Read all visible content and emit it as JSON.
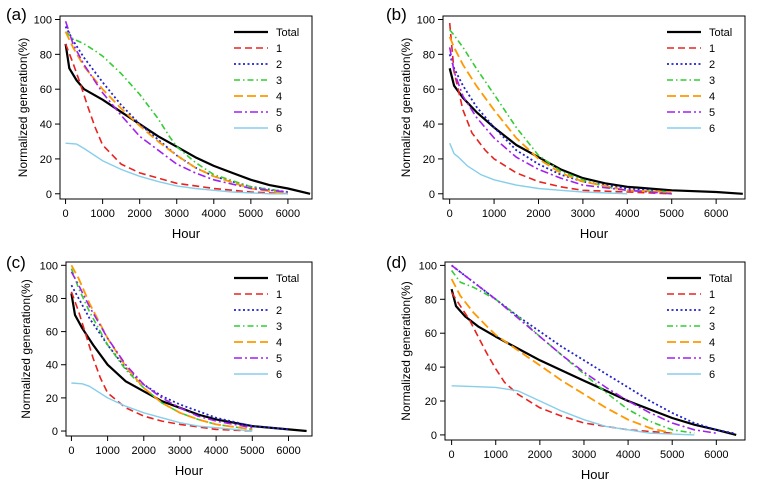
{
  "figure": {
    "colors": {
      "Total": "#000000",
      "1": "#e8231f",
      "2": "#2222cc",
      "3": "#33cc33",
      "4": "#ff9900",
      "5": "#a020f0",
      "6": "#87ceeb"
    }
  },
  "chart_data": [
    {
      "type": "line",
      "panel_label": "(a)",
      "xlabel": "Hour",
      "ylabel": "Normalized generation(%)",
      "xlim": [
        -150,
        6650
      ],
      "ylim": [
        -3,
        102
      ],
      "xticks": [
        0,
        1000,
        2000,
        3000,
        4000,
        5000,
        6000
      ],
      "yticks": [
        0,
        20,
        40,
        60,
        80,
        100
      ],
      "legend_position": "top-right",
      "series": [
        {
          "name": "Total",
          "x": [
            0,
            100,
            300,
            500,
            1000,
            1500,
            2000,
            2500,
            3000,
            3500,
            4000,
            4500,
            5000,
            5500,
            6000,
            6600
          ],
          "y": [
            86,
            72,
            65,
            60,
            54,
            47,
            40,
            33,
            27,
            21,
            16,
            12,
            8,
            5,
            3,
            0
          ]
        },
        {
          "name": "1",
          "x": [
            0,
            200,
            400,
            600,
            800,
            1000,
            1500,
            2000,
            2500,
            3000,
            4000,
            5000,
            6000
          ],
          "y": [
            86,
            75,
            63,
            50,
            38,
            28,
            17,
            12,
            9,
            6,
            3,
            1,
            0
          ]
        },
        {
          "name": "2",
          "x": [
            0,
            200,
            500,
            1000,
            1500,
            2000,
            2500,
            3000,
            3500,
            4000,
            5000,
            6000
          ],
          "y": [
            96,
            88,
            78,
            64,
            51,
            40,
            31,
            22,
            15,
            10,
            4,
            1
          ]
        },
        {
          "name": "3",
          "x": [
            0,
            200,
            500,
            800,
            1000,
            1500,
            2000,
            2500,
            2800,
            3000,
            3500,
            4000,
            5000,
            6000
          ],
          "y": [
            93,
            89,
            86,
            82,
            79,
            69,
            57,
            43,
            33,
            27,
            18,
            11,
            4,
            1
          ]
        },
        {
          "name": "4",
          "x": [
            0,
            200,
            500,
            1000,
            1500,
            2000,
            2500,
            3000,
            3500,
            4000,
            5000,
            6000
          ],
          "y": [
            93,
            84,
            73,
            60,
            49,
            39,
            30,
            22,
            15,
            10,
            3,
            0
          ]
        },
        {
          "name": "5",
          "x": [
            0,
            200,
            500,
            1000,
            1500,
            2000,
            2500,
            3000,
            3500,
            4000,
            5000,
            6000
          ],
          "y": [
            99,
            86,
            74,
            58,
            45,
            33,
            25,
            17,
            12,
            8,
            3,
            1
          ]
        },
        {
          "name": "6",
          "x": [
            0,
            300,
            500,
            1000,
            1500,
            2000,
            2500,
            3000,
            3500,
            4000,
            4500,
            5000,
            5500,
            6000
          ],
          "y": [
            29,
            28.5,
            26,
            19,
            14,
            10,
            7,
            4.5,
            3,
            2,
            1,
            0.5,
            0,
            0
          ]
        }
      ]
    },
    {
      "type": "line",
      "panel_label": "(b)",
      "xlabel": "Hour",
      "ylabel": "Normalized generation(%)",
      "xlim": [
        -150,
        6650
      ],
      "ylim": [
        -3,
        102
      ],
      "xticks": [
        0,
        1000,
        2000,
        3000,
        4000,
        5000,
        6000
      ],
      "yticks": [
        0,
        20,
        40,
        60,
        80,
        100
      ],
      "legend_position": "top-right",
      "series": [
        {
          "name": "Total",
          "x": [
            0,
            100,
            300,
            600,
            1000,
            1500,
            2000,
            2500,
            3000,
            3500,
            4000,
            5000,
            6000,
            6600
          ],
          "y": [
            72,
            62,
            55,
            47,
            38,
            28,
            21,
            14,
            9,
            6,
            4,
            2,
            1,
            0
          ]
        },
        {
          "name": "1",
          "x": [
            0,
            100,
            300,
            500,
            800,
            1000,
            1500,
            2000,
            2500,
            3000,
            4000,
            5000
          ],
          "y": [
            98,
            70,
            48,
            35,
            25,
            20,
            12,
            7,
            4,
            2,
            1,
            0
          ]
        },
        {
          "name": "2",
          "x": [
            0,
            100,
            300,
            600,
            1000,
            1500,
            2000,
            2500,
            3000,
            4000,
            5000
          ],
          "y": [
            80,
            72,
            62,
            50,
            38,
            25,
            17,
            11,
            7,
            3,
            1
          ]
        },
        {
          "name": "3",
          "x": [
            0,
            100,
            300,
            600,
            1000,
            1500,
            2000,
            2500,
            3000,
            3500,
            4000,
            5000
          ],
          "y": [
            94,
            91,
            84,
            72,
            57,
            38,
            22,
            13,
            8,
            4,
            2,
            1
          ]
        },
        {
          "name": "4",
          "x": [
            0,
            100,
            300,
            600,
            1000,
            1500,
            2000,
            2500,
            3000,
            4000,
            5000
          ],
          "y": [
            90,
            84,
            74,
            62,
            48,
            32,
            20,
            12,
            7,
            2,
            1
          ]
        },
        {
          "name": "5",
          "x": [
            0,
            100,
            300,
            600,
            1000,
            1500,
            2000,
            2500,
            3000,
            4000,
            5000
          ],
          "y": [
            84,
            70,
            56,
            44,
            32,
            21,
            14,
            9,
            5,
            2,
            0
          ]
        },
        {
          "name": "6",
          "x": [
            0,
            100,
            200,
            400,
            700,
            1000,
            1500,
            2000,
            2500,
            3000,
            4000
          ],
          "y": [
            29,
            23,
            21,
            16,
            11,
            8,
            5,
            3,
            2,
            1,
            0
          ]
        }
      ]
    },
    {
      "type": "line",
      "panel_label": "(c)",
      "xlabel": "Hour",
      "ylabel": "Normalized generation(%)",
      "xlim": [
        -150,
        6650
      ],
      "ylim": [
        -3,
        102
      ],
      "xticks": [
        0,
        1000,
        2000,
        3000,
        4000,
        5000,
        6000
      ],
      "yticks": [
        0,
        20,
        40,
        60,
        80,
        100
      ],
      "legend_position": "top-right",
      "series": [
        {
          "name": "Total",
          "x": [
            0,
            100,
            300,
            600,
            1000,
            1500,
            2000,
            2500,
            3000,
            3500,
            4000,
            5000,
            6000,
            6500
          ],
          "y": [
            83,
            70,
            62,
            52,
            40,
            30,
            24,
            18,
            14,
            10,
            7,
            3,
            1,
            0
          ]
        },
        {
          "name": "1",
          "x": [
            0,
            200,
            400,
            600,
            800,
            1000,
            1500,
            2000,
            2500,
            3000,
            4000,
            5000
          ],
          "y": [
            84,
            72,
            58,
            44,
            32,
            23,
            14,
            9,
            6,
            4,
            1,
            0
          ]
        },
        {
          "name": "2",
          "x": [
            0,
            200,
            500,
            1000,
            1500,
            2000,
            2500,
            3000,
            3500,
            4000,
            5000,
            6000
          ],
          "y": [
            88,
            80,
            68,
            52,
            38,
            28,
            21,
            16,
            12,
            8,
            3,
            1
          ]
        },
        {
          "name": "3",
          "x": [
            0,
            200,
            500,
            1000,
            1500,
            2000,
            2500,
            3000,
            3500,
            4000,
            5000
          ],
          "y": [
            98,
            86,
            72,
            52,
            37,
            26,
            17,
            11,
            7,
            4,
            1
          ]
        },
        {
          "name": "4",
          "x": [
            0,
            200,
            500,
            1000,
            1500,
            2000,
            2500,
            3000,
            3500,
            4000,
            5000
          ],
          "y": [
            100,
            92,
            77,
            56,
            39,
            26,
            17,
            11,
            7,
            4,
            1
          ]
        },
        {
          "name": "5",
          "x": [
            0,
            200,
            500,
            1000,
            1500,
            2000,
            2500,
            3000,
            3500,
            4000,
            5000
          ],
          "y": [
            96,
            88,
            75,
            56,
            40,
            28,
            20,
            14,
            9,
            6,
            2
          ]
        },
        {
          "name": "6",
          "x": [
            0,
            300,
            500,
            1000,
            1500,
            2000,
            2500,
            3000,
            3500,
            4000,
            5000
          ],
          "y": [
            29,
            28.5,
            27,
            20,
            15,
            11,
            8,
            5,
            3,
            2,
            0
          ]
        }
      ]
    },
    {
      "type": "line",
      "panel_label": "(d)",
      "xlabel": "Hour",
      "ylabel": "Normalized generation(%)",
      "xlim": [
        -150,
        6650
      ],
      "ylim": [
        -3,
        102
      ],
      "xticks": [
        0,
        1000,
        2000,
        3000,
        4000,
        5000,
        6000
      ],
      "yticks": [
        0,
        20,
        40,
        60,
        80,
        100
      ],
      "legend_position": "top-right",
      "series": [
        {
          "name": "Total",
          "x": [
            0,
            100,
            300,
            600,
            1000,
            1500,
            2000,
            2500,
            3000,
            3500,
            4000,
            4500,
            5000,
            5500,
            6000,
            6450
          ],
          "y": [
            86,
            76,
            70,
            64,
            58,
            51,
            44,
            38,
            32,
            26,
            20,
            15,
            10,
            6,
            3,
            0
          ]
        },
        {
          "name": "1",
          "x": [
            0,
            200,
            400,
            600,
            800,
            1000,
            1200,
            1500,
            2000,
            2500,
            3000,
            4000,
            5000
          ],
          "y": [
            84,
            76,
            68,
            58,
            48,
            39,
            31,
            24,
            16,
            11,
            7,
            3,
            1
          ]
        },
        {
          "name": "2",
          "x": [
            0,
            500,
            1000,
            1500,
            2000,
            2500,
            3000,
            3500,
            4000,
            4500,
            5000,
            5500,
            6000,
            6400
          ],
          "y": [
            100,
            90,
            80,
            70,
            61,
            52,
            44,
            36,
            28,
            20,
            13,
            7,
            3,
            1
          ]
        },
        {
          "name": "3",
          "x": [
            0,
            200,
            500,
            1000,
            1500,
            2000,
            2500,
            3000,
            3500,
            4000,
            4500,
            5000,
            5500
          ],
          "y": [
            97,
            90,
            87,
            80,
            70,
            58,
            47,
            36,
            25,
            15,
            8,
            3,
            1
          ]
        },
        {
          "name": "4",
          "x": [
            0,
            200,
            500,
            800,
            1000,
            1500,
            2000,
            2500,
            3000,
            3500,
            4000,
            4500,
            5000
          ],
          "y": [
            92,
            82,
            72,
            64,
            59,
            50,
            41,
            32,
            24,
            16,
            9,
            4,
            1
          ]
        },
        {
          "name": "5",
          "x": [
            0,
            500,
            1000,
            1500,
            2000,
            2500,
            3000,
            3500,
            4000,
            4500,
            5000,
            5500,
            6000
          ],
          "y": [
            100,
            90,
            80,
            69,
            58,
            47,
            37,
            28,
            20,
            13,
            7,
            3,
            1
          ]
        },
        {
          "name": "6",
          "x": [
            0,
            500,
            1000,
            1500,
            2000,
            2500,
            3000,
            3500,
            4000,
            4500,
            5000,
            5500
          ],
          "y": [
            29,
            28.5,
            28,
            26,
            20,
            14,
            9,
            5,
            3,
            1,
            0.5,
            0
          ]
        }
      ]
    }
  ]
}
